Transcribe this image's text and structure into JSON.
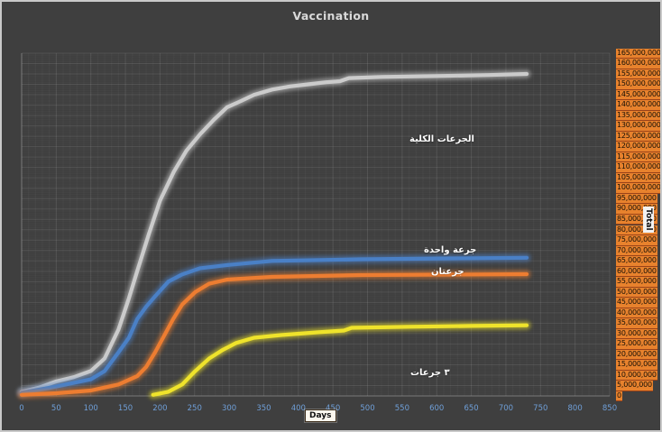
{
  "title": "Vaccination",
  "colors": {
    "background": "#3f3f3f",
    "title_text": "#d9d9d9",
    "x_tick_text": "#6f9fd8",
    "y_tick_bg": "#e8822d",
    "y_tick_border": "#9a4218",
    "y_tick_text": "#161006",
    "annotation_text": "#ffffff",
    "grid_major": "rgba(255,255,255,0.10)",
    "grid_minor": "rgba(255,255,255,0.035)",
    "grid_minor_h": "rgba(255,255,255,0.025)",
    "axis_line": "rgba(255,255,255,0.22)"
  },
  "chart_data": {
    "type": "line",
    "title": "Vaccination",
    "xlabel": "Days",
    "ylabel": "Total",
    "xlim": [
      0,
      850
    ],
    "ylim": [
      0,
      165000000
    ],
    "grid": true,
    "x_ticks": [
      "0",
      "50",
      "100",
      "150",
      "200",
      "250",
      "300",
      "350",
      "400",
      "450",
      "500",
      "550",
      "600",
      "650",
      "700",
      "750",
      "800",
      "850"
    ],
    "y_ticks": [
      "165,000,000",
      "160,000,000",
      "155,000,000",
      "150,000,000",
      "145,000,000",
      "140,000,000",
      "135,000,000",
      "130,000,000",
      "125,000,000",
      "120,000,000",
      "115,000,000",
      "110,000,000",
      "105,000,000",
      "100,000,000",
      "95,000,000",
      "90,000,000",
      "85,000,000",
      "80,000,000",
      "75,000,000",
      "70,000,000",
      "65,000,000",
      "60,000,000",
      "55,000,000",
      "50,000,000",
      "45,000,000",
      "40,000,000",
      "35,000,000",
      "30,000,000",
      "25,000,000",
      "20,000,000",
      "15,000,000",
      "10,000,000",
      "5,000,000",
      "0"
    ],
    "series": [
      {
        "name": "total-doses",
        "label": "الجرعات الكلية",
        "color": "#cbcbcb",
        "points": [
          [
            0,
            2000000
          ],
          [
            25,
            4000000
          ],
          [
            50,
            7000000
          ],
          [
            75,
            9000000
          ],
          [
            100,
            12000000
          ],
          [
            120,
            18000000
          ],
          [
            140,
            32000000
          ],
          [
            155,
            47000000
          ],
          [
            167,
            60000000
          ],
          [
            184,
            78000000
          ],
          [
            200,
            94000000
          ],
          [
            220,
            108000000
          ],
          [
            238,
            118000000
          ],
          [
            258,
            126000000
          ],
          [
            278,
            133000000
          ],
          [
            297,
            139000000
          ],
          [
            317,
            142000000
          ],
          [
            336,
            145000000
          ],
          [
            362,
            147500000
          ],
          [
            388,
            149000000
          ],
          [
            414,
            150000000
          ],
          [
            440,
            151000000
          ],
          [
            460,
            151500000
          ],
          [
            473,
            153000000
          ],
          [
            520,
            153600000
          ],
          [
            600,
            154000000
          ],
          [
            675,
            154500000
          ],
          [
            730,
            155000000
          ]
        ]
      },
      {
        "name": "one-dose",
        "label": "جرعة واحدة",
        "color": "#4a80c6",
        "points": [
          [
            0,
            1500000
          ],
          [
            50,
            4500000
          ],
          [
            100,
            8000000
          ],
          [
            120,
            12000000
          ],
          [
            140,
            21000000
          ],
          [
            155,
            28000000
          ],
          [
            167,
            37000000
          ],
          [
            180,
            43000000
          ],
          [
            193,
            48000000
          ],
          [
            212,
            55000000
          ],
          [
            232,
            58500000
          ],
          [
            258,
            61500000
          ],
          [
            297,
            63000000
          ],
          [
            362,
            65000000
          ],
          [
            490,
            65800000
          ],
          [
            620,
            66200000
          ],
          [
            730,
            66500000
          ]
        ]
      },
      {
        "name": "two-doses",
        "label": "جرعتان",
        "color": "#ed7d31",
        "points": [
          [
            0,
            500000
          ],
          [
            50,
            1300000
          ],
          [
            100,
            2600000
          ],
          [
            140,
            5500000
          ],
          [
            167,
            9500000
          ],
          [
            180,
            14000000
          ],
          [
            193,
            21000000
          ],
          [
            206,
            29000000
          ],
          [
            219,
            37000000
          ],
          [
            232,
            44000000
          ],
          [
            251,
            50000000
          ],
          [
            271,
            54000000
          ],
          [
            297,
            56000000
          ],
          [
            362,
            57300000
          ],
          [
            490,
            58200000
          ],
          [
            730,
            58600000
          ]
        ]
      },
      {
        "name": "three-doses",
        "label": "٣ جرعات",
        "color": "#efe32b",
        "points": [
          [
            190,
            500000
          ],
          [
            212,
            2000000
          ],
          [
            232,
            5500000
          ],
          [
            251,
            12000000
          ],
          [
            271,
            18000000
          ],
          [
            290,
            22000000
          ],
          [
            310,
            25500000
          ],
          [
            336,
            28000000
          ],
          [
            375,
            29300000
          ],
          [
            427,
            30600000
          ],
          [
            466,
            31500000
          ],
          [
            477,
            32800000
          ],
          [
            560,
            33300000
          ],
          [
            650,
            33700000
          ],
          [
            730,
            34000000
          ]
        ]
      }
    ]
  }
}
